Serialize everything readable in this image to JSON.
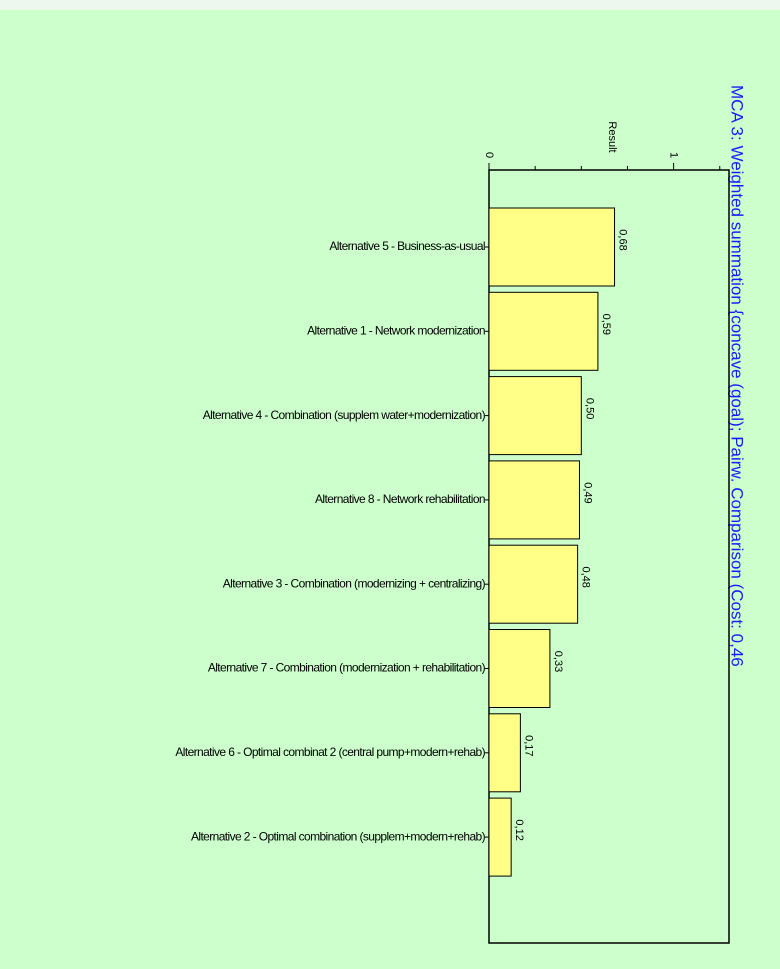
{
  "chart_data": {
    "type": "hbar",
    "title": "MCA 3: Weighted summation {concave (goal); Pairw. Comparison (Cost: 0,46",
    "axis_label": "Result",
    "categories": [
      "Alternative 5 - Business-as-usual",
      "Alternative 1 - Network modernization",
      "Alternative 4 - Combination (supplem water+modernization)",
      "Alternative 8 - Network rehabilitation",
      "Alternative 3 - Combination (modernizing + centralizing)",
      "Alternative 7 - Combination (modernization + rehabilitation)",
      "Alternative 6 - Optimal combinat 2 (central pump+modern+rehab)",
      "Alternative 2 - Optimal combination (supplem+modern+rehab)"
    ],
    "values": [
      0.68,
      0.59,
      0.5,
      0.49,
      0.48,
      0.33,
      0.17,
      0.12
    ],
    "value_labels": [
      "0,68",
      "0,59",
      "0,50",
      "0,49",
      "0,48",
      "0,33",
      "0,17",
      "0,12"
    ],
    "color": "#ffff88",
    "xlim": [
      0,
      1.3
    ],
    "xticks": [
      0,
      1
    ],
    "minor_xticks": [
      0.25,
      0.5,
      0.75,
      1.25
    ]
  }
}
